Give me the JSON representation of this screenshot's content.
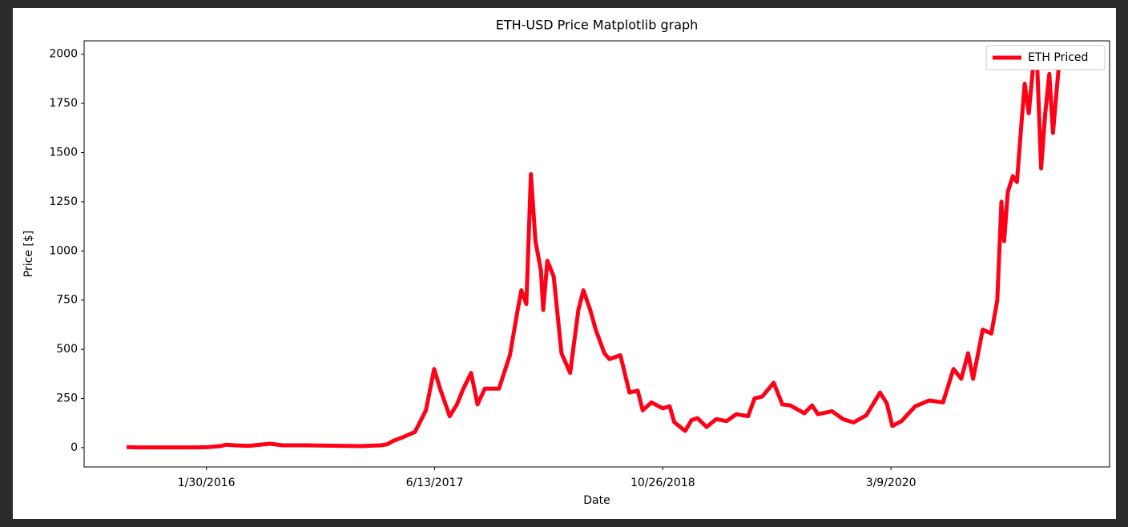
{
  "chart_data": {
    "type": "line",
    "title": "ETH-USD Price Matplotlib graph",
    "x_label": "Date",
    "y_label": "Price [$]",
    "xlim": [
      "5/7/2015",
      "7/1/2021"
    ],
    "xticks": [
      "1/30/2016",
      "6/13/2017",
      "10/26/2018",
      "3/9/2020"
    ],
    "ylim": [
      -98,
      2068
    ],
    "yticks": [
      0,
      250,
      500,
      750,
      1000,
      1250,
      1500,
      1750,
      2000
    ],
    "legend": "upper right",
    "grid": false,
    "x": [
      "8/8/2015",
      "9/1/2015",
      "11/1/2015",
      "1/1/2016",
      "1/30/2016",
      "3/1/2016",
      "3/13/2016",
      "4/1/2016",
      "5/1/2016",
      "6/17/2016",
      "7/15/2016",
      "9/1/2016",
      "11/1/2016",
      "1/1/2017",
      "2/15/2017",
      "3/1/2017",
      "3/15/2017",
      "4/1/2017",
      "5/1/2017",
      "5/25/2017",
      "6/12/2017",
      "6/25/2017",
      "7/16/2017",
      "8/1/2017",
      "8/15/2017",
      "9/1/2017",
      "9/15/2017",
      "10/1/2017",
      "11/1/2017",
      "11/25/2017",
      "12/12/2017",
      "12/20/2017",
      "12/31/2017",
      "1/10/2018",
      "1/20/2018",
      "2/1/2018",
      "2/6/2018",
      "2/15/2018",
      "3/1/2018",
      "3/18/2018",
      "4/6/2018",
      "4/24/2018",
      "5/5/2018",
      "5/20/2018",
      "6/1/2018",
      "6/20/2018",
      "7/1/2018",
      "7/25/2018",
      "8/14/2018",
      "9/1/2018",
      "9/12/2018",
      "10/1/2018",
      "10/26/2018",
      "11/10/2018",
      "11/20/2018",
      "12/14/2018",
      "12/28/2018",
      "1/10/2019",
      "1/30/2019",
      "2/20/2019",
      "3/15/2019",
      "4/5/2019",
      "5/1/2019",
      "5/15/2019",
      "6/1/2019",
      "6/26/2019",
      "7/15/2019",
      "8/1/2019",
      "9/1/2019",
      "9/18/2019",
      "10/1/2019",
      "11/1/2019",
      "11/25/2019",
      "12/18/2019",
      "1/15/2020",
      "2/14/2020",
      "2/29/2020",
      "3/12/2020",
      "4/1/2020",
      "5/1/2020",
      "6/1/2020",
      "7/1/2020",
      "7/24/2020",
      "8/10/2020",
      "8/25/2020",
      "9/5/2020",
      "9/26/2020",
      "10/15/2020",
      "10/28/2020",
      "11/6/2020",
      "11/12/2020",
      "11/20/2020",
      "12/1/2020",
      "12/10/2020",
      "12/20/2020",
      "12/27/2020",
      "1/5/2021",
      "1/15/2021",
      "1/23/2021",
      "2/1/2021",
      "2/10/2021",
      "2/19/2021",
      "2/27/2021",
      "3/14/2021"
    ],
    "series": [
      {
        "name": "ETH Priced",
        "color": "#ff0017",
        "values": [
          3,
          1.3,
          1,
          1,
          2.5,
          8,
          15,
          12,
          9,
          20,
          12,
          12,
          10,
          8,
          12,
          17,
          35,
          50,
          80,
          190,
          400,
          300,
          160,
          220,
          300,
          380,
          220,
          300,
          300,
          470,
          700,
          800,
          730,
          1390,
          1050,
          900,
          700,
          950,
          870,
          480,
          380,
          700,
          800,
          700,
          600,
          480,
          450,
          470,
          280,
          290,
          190,
          230,
          200,
          210,
          130,
          85,
          140,
          150,
          105,
          145,
          135,
          170,
          160,
          250,
          260,
          330,
          220,
          215,
          175,
          215,
          170,
          185,
          145,
          128,
          165,
          280,
          225,
          110,
          135,
          210,
          240,
          230,
          400,
          350,
          480,
          350,
          600,
          580,
          750,
          1250,
          1050,
          1300,
          1380,
          1350,
          1650,
          1850,
          1700,
          1950,
          1970,
          1420,
          1700,
          1900,
          1600,
          2000
        ]
      }
    ]
  }
}
